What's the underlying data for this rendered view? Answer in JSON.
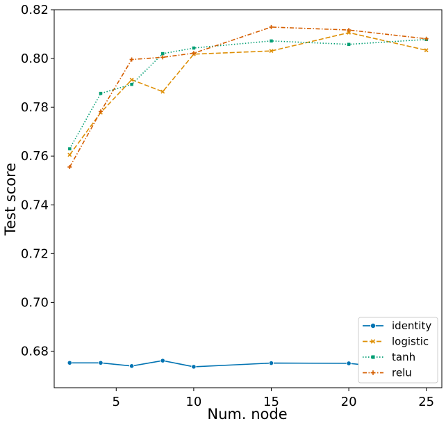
{
  "chart_data": {
    "type": "line",
    "xlabel": "Num. node",
    "ylabel": "Test score",
    "xlim": [
      1,
      26
    ],
    "ylim": [
      0.665,
      0.82
    ],
    "xticks": [
      5,
      10,
      15,
      20,
      25
    ],
    "yticks": [
      0.68,
      0.7,
      0.72,
      0.74,
      0.76,
      0.78,
      0.8,
      0.82
    ],
    "ytick_labels": [
      "0.68",
      "0.70",
      "0.72",
      "0.74",
      "0.76",
      "0.78",
      "0.80",
      "0.82"
    ],
    "grid": false,
    "legend_position": "lower-right",
    "x": [
      2,
      4,
      6,
      8,
      10,
      15,
      20,
      25
    ],
    "series": [
      {
        "name": "identity",
        "color": "#0173b2",
        "dash": "solid",
        "marker": "circle",
        "values": [
          0.6752,
          0.6752,
          0.6739,
          0.6761,
          0.6736,
          0.6751,
          0.675,
          0.6717
        ]
      },
      {
        "name": "logistic",
        "color": "#de8f05",
        "dash": "dashed",
        "marker": "x",
        "values": [
          0.7605,
          0.7778,
          0.7913,
          0.7864,
          0.8018,
          0.8031,
          0.8106,
          0.8034
        ]
      },
      {
        "name": "tanh",
        "color": "#029e73",
        "dash": "dotted",
        "marker": "square",
        "values": [
          0.763,
          0.7857,
          0.7894,
          0.802,
          0.8043,
          0.8072,
          0.8058,
          0.8078
        ]
      },
      {
        "name": "relu",
        "color": "#d55e00",
        "dash": "dashdot",
        "marker": "plus",
        "values": [
          0.7555,
          0.7783,
          0.7996,
          0.8005,
          0.8022,
          0.8129,
          0.8117,
          0.8081
        ]
      }
    ]
  }
}
